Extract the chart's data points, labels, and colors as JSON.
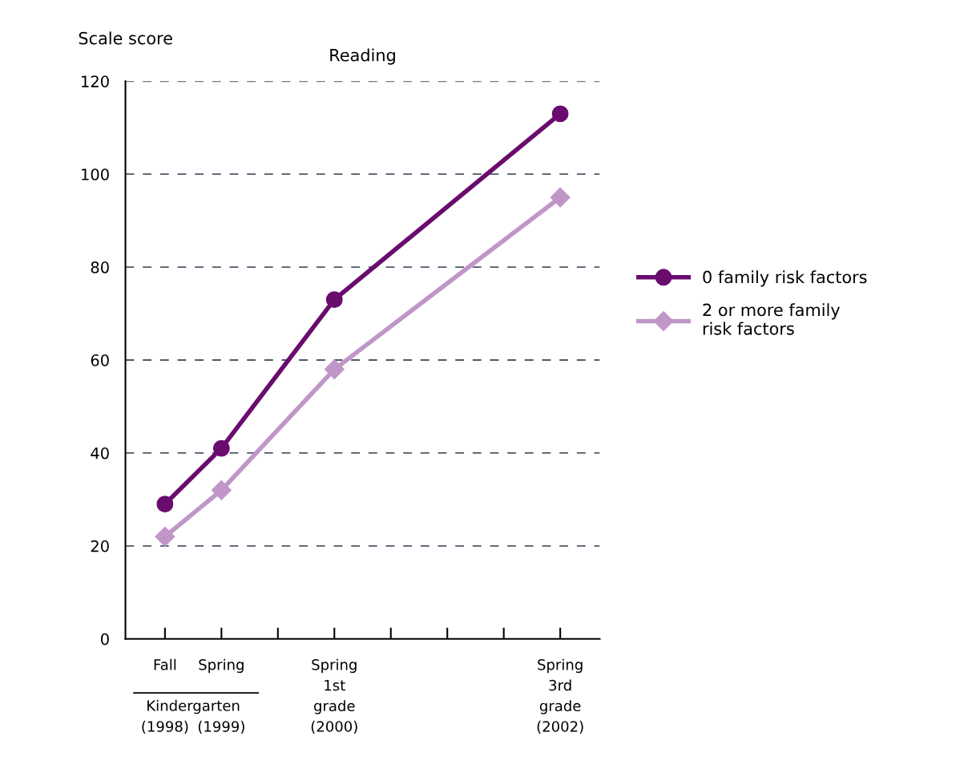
{
  "chart_data": {
    "type": "line",
    "title": "Reading",
    "ylabel": "Scale score",
    "categories": [
      "Fall\n\n\n(1998)",
      "Spring\n\n\n(1999)",
      null,
      "Spring\n1st\ngrade\n(2000)",
      null,
      null,
      null,
      "Spring\n3rd\ngrade\n(2002)"
    ],
    "series": [
      {
        "name": "0 family risk factors",
        "color": "#6a0b6e",
        "marker": "circle",
        "values": [
          29,
          41,
          null,
          73,
          null,
          null,
          null,
          113
        ]
      },
      {
        "name": "2 or more family\nrisk factors",
        "color": "#c096c8",
        "marker": "diamond",
        "values": [
          22,
          32,
          null,
          58,
          null,
          null,
          null,
          95
        ]
      }
    ],
    "ylim": [
      0,
      120
    ],
    "yticks": [
      0,
      20,
      40,
      60,
      80,
      100,
      120
    ],
    "grid": "y",
    "legend": "right",
    "line_style": "solid",
    "annotations": [
      "Kindergarten"
    ]
  }
}
